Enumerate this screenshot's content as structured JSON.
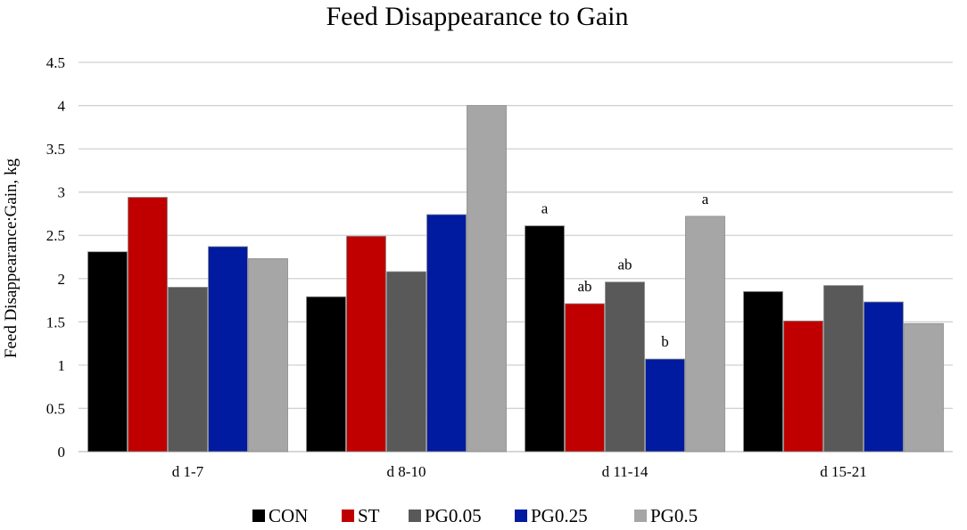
{
  "chart_data": {
    "type": "bar",
    "title": "Feed Disappearance to Gain",
    "xlabel": "",
    "ylabel": "Feed Disappearance:Gain, kg",
    "ylim": [
      0,
      4.5
    ],
    "yticks": [
      "0",
      "0.5",
      "1",
      "1.5",
      "2",
      "2.5",
      "3",
      "3.5",
      "4",
      "4.5"
    ],
    "grid": true,
    "legend_position": "bottom",
    "categories": [
      "d 1-7",
      "d 8-10",
      "d 11-14",
      "d 15-21"
    ],
    "series": [
      {
        "name": "CON",
        "color": "#000000",
        "values": [
          2.31,
          1.79,
          2.61,
          1.85
        ]
      },
      {
        "name": "ST",
        "color": "#c00000",
        "values": [
          2.94,
          2.49,
          1.71,
          1.51
        ]
      },
      {
        "name": "PG0.05",
        "color": "#595959",
        "values": [
          1.9,
          2.08,
          1.96,
          1.92
        ]
      },
      {
        "name": "PG0.25",
        "color": "#001aa0",
        "values": [
          2.37,
          2.74,
          1.07,
          1.73
        ]
      },
      {
        "name": "PG0.5",
        "color": "#a6a6a6",
        "values": [
          2.23,
          4.0,
          2.72,
          1.48
        ]
      }
    ],
    "annotations": [
      {
        "category": "d 11-14",
        "series": "CON",
        "text": "a"
      },
      {
        "category": "d 11-14",
        "series": "ST",
        "text": "ab"
      },
      {
        "category": "d 11-14",
        "series": "PG0.05",
        "text": "ab"
      },
      {
        "category": "d 11-14",
        "series": "PG0.25",
        "text": "b"
      },
      {
        "category": "d 11-14",
        "series": "PG0.5",
        "text": "a"
      }
    ]
  }
}
